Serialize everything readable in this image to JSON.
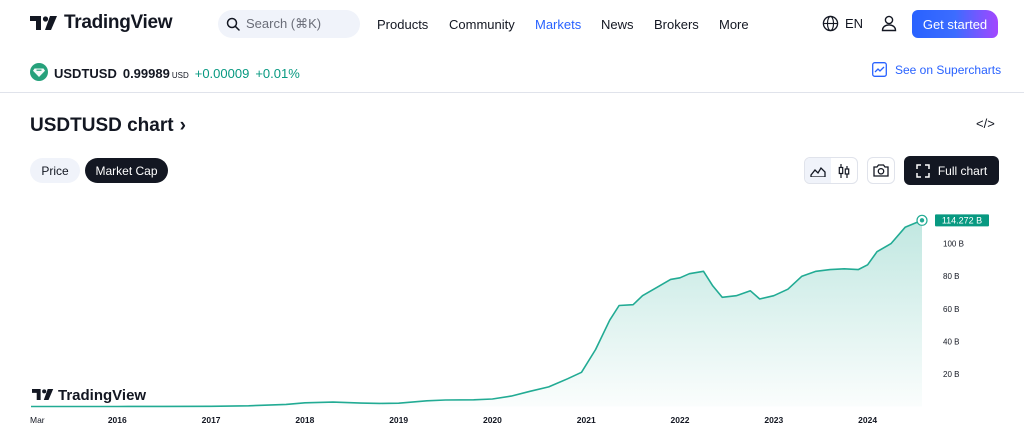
{
  "nav": {
    "brand": "TradingView",
    "search_placeholder": "Search (⌘K)",
    "menu": [
      {
        "label": "Products",
        "active": false
      },
      {
        "label": "Community",
        "active": false
      },
      {
        "label": "Markets",
        "active": true
      },
      {
        "label": "News",
        "active": false
      },
      {
        "label": "Brokers",
        "active": false
      },
      {
        "label": "More",
        "active": false
      }
    ],
    "language": "EN",
    "cta": "Get started"
  },
  "ticker": {
    "symbol": "USDTUSD",
    "price": "0.99989",
    "currency": "USD",
    "change": "+0.00009",
    "change_pct": "+0.01%",
    "supercharts_link": "See on Supercharts"
  },
  "chart_header": {
    "title": "USDTUSD chart",
    "chevron": "›",
    "embed_icon": "</>",
    "tabs": [
      "Price",
      "Market Cap"
    ],
    "active_tab": "Market Cap",
    "full_chart_label": "Full chart"
  },
  "colors": {
    "accent": "#2962ff",
    "line": "#22ab94",
    "positive": "#089981",
    "dark": "#131722"
  },
  "chart_data": {
    "type": "area",
    "title": "USDTUSD Market Cap",
    "watermark": "TradingView",
    "last_value_label": "114.272 B",
    "ylim": [
      0,
      120
    ],
    "y_ticks": [
      {
        "value": 20,
        "label": "20 B"
      },
      {
        "value": 40,
        "label": "40 B"
      },
      {
        "value": 60,
        "label": "60 B"
      },
      {
        "value": 80,
        "label": "80 B"
      },
      {
        "value": 100,
        "label": "100 B"
      }
    ],
    "x_ticks": [
      {
        "t": 2015.17,
        "label": "Mar"
      },
      {
        "t": 2016.0,
        "label": "2016"
      },
      {
        "t": 2017.0,
        "label": "2017"
      },
      {
        "t": 2018.0,
        "label": "2018"
      },
      {
        "t": 2019.0,
        "label": "2019"
      },
      {
        "t": 2020.0,
        "label": "2020"
      },
      {
        "t": 2021.0,
        "label": "2021"
      },
      {
        "t": 2022.0,
        "label": "2022"
      },
      {
        "t": 2023.0,
        "label": "2023"
      },
      {
        "t": 2024.0,
        "label": "2024"
      }
    ],
    "x_range": [
      2015.08,
      2024.58
    ],
    "series": [
      {
        "name": "Market Cap (B)",
        "x": [
          2015.08,
          2016.0,
          2016.5,
          2017.0,
          2017.4,
          2017.8,
          2018.0,
          2018.3,
          2018.6,
          2018.8,
          2019.0,
          2019.3,
          2019.5,
          2019.8,
          2020.0,
          2020.2,
          2020.4,
          2020.6,
          2020.8,
          2020.95,
          2021.1,
          2021.25,
          2021.35,
          2021.5,
          2021.6,
          2021.75,
          2021.9,
          2022.0,
          2022.1,
          2022.25,
          2022.35,
          2022.45,
          2022.6,
          2022.75,
          2022.85,
          2023.0,
          2023.15,
          2023.3,
          2023.45,
          2023.6,
          2023.75,
          2023.9,
          2024.0,
          2024.1,
          2024.25,
          2024.4,
          2024.58
        ],
        "values": [
          0.0,
          0.01,
          0.05,
          0.1,
          0.4,
          1.3,
          2.3,
          2.7,
          2.1,
          1.9,
          2.0,
          3.5,
          4.0,
          4.1,
          4.6,
          6.4,
          9.3,
          12.0,
          17.0,
          21.0,
          35.0,
          53.0,
          62.0,
          62.5,
          68.0,
          73.0,
          78.0,
          79.0,
          81.5,
          83.0,
          74.0,
          67.0,
          68.0,
          71.0,
          66.0,
          68.0,
          72.0,
          80.0,
          83.0,
          84.0,
          84.5,
          84.0,
          87.0,
          95.0,
          100.0,
          110.0,
          114.272
        ]
      }
    ]
  }
}
